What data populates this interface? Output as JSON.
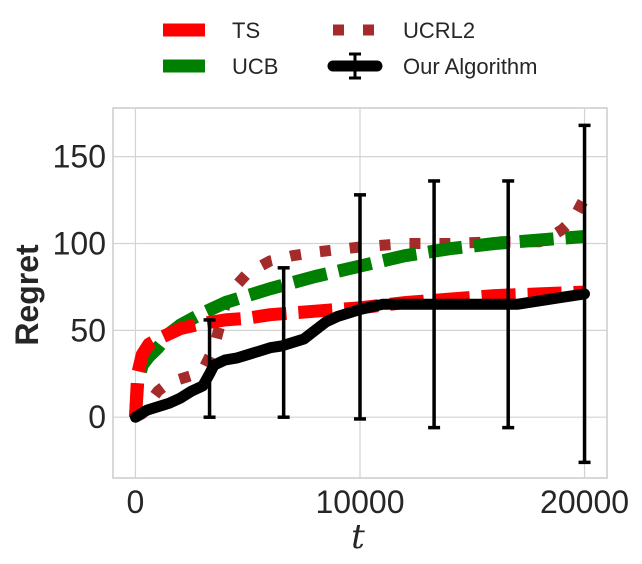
{
  "chart_data": {
    "type": "line",
    "xlabel": "t",
    "ylabel": "Regret",
    "xlim": [
      -1000,
      21000
    ],
    "ylim": [
      -35,
      178
    ],
    "x_ticks": [
      0,
      10000,
      20000
    ],
    "x_tick_labels": [
      "0",
      "10000",
      "20000"
    ],
    "y_ticks": [
      0,
      50,
      100,
      150
    ],
    "y_tick_labels": [
      "0",
      "50",
      "100",
      "150"
    ],
    "grid": true,
    "legend_position": "top-center, outside plot",
    "series": [
      {
        "name": "TS",
        "color": "#ff0000",
        "style": "dashed",
        "x": [
          0,
          100,
          300,
          600,
          1000,
          1500,
          2000,
          3000,
          4000,
          5000,
          6000,
          8000,
          10000,
          12000,
          14000,
          16000,
          18000,
          20000
        ],
        "y": [
          0,
          25,
          36,
          42,
          45,
          48,
          51,
          54,
          56,
          57,
          59,
          61,
          63,
          66,
          68,
          70,
          71,
          72
        ]
      },
      {
        "name": "UCB",
        "color": "#008000",
        "style": "dashed",
        "x": [
          0,
          100,
          300,
          600,
          1000,
          1500,
          2000,
          3000,
          4000,
          5000,
          6000,
          8000,
          10000,
          12000,
          14000,
          16000,
          18000,
          20000
        ],
        "y": [
          0,
          20,
          30,
          35,
          40,
          48,
          53,
          60,
          66,
          70,
          74,
          81,
          87,
          93,
          97,
          100,
          102,
          104
        ]
      },
      {
        "name": "UCRL2",
        "color": "#a52a2a",
        "style": "dotted",
        "x": [
          0,
          300,
          600,
          1000,
          1500,
          2000,
          2500,
          3000,
          3500,
          4000,
          4500,
          5000,
          6000,
          7000,
          8000,
          10000,
          12000,
          14000,
          16000,
          17000,
          18000,
          18500,
          19000,
          19500,
          20000
        ],
        "y": [
          0,
          2,
          8,
          15,
          20,
          22,
          24,
          27,
          40,
          65,
          76,
          83,
          90,
          93,
          95,
          98,
          100,
          100,
          101,
          101,
          101,
          104,
          108,
          114,
          126
        ]
      },
      {
        "name": "Our Algorithm",
        "color": "#000000",
        "style": "solid",
        "error_bars": true,
        "x": [
          0,
          500,
          1000,
          1500,
          2000,
          2500,
          3000,
          3300,
          3500,
          4000,
          4500,
          5000,
          5500,
          6000,
          6500,
          7000,
          7500,
          8000,
          8500,
          9000,
          9500,
          10000,
          11000,
          12000,
          13000,
          14000,
          15000,
          16000,
          17000,
          18000,
          19000,
          20000
        ],
        "y": [
          0,
          4,
          6,
          8,
          11,
          15,
          18,
          25,
          30,
          33,
          34,
          36,
          38,
          40,
          41,
          43,
          45,
          50,
          55,
          58,
          60,
          62,
          65,
          65,
          65,
          65,
          65,
          65,
          65,
          67,
          69,
          71
        ],
        "errorbars": [
          {
            "x": 3300,
            "low": 0,
            "high": 56
          },
          {
            "x": 6600,
            "low": 0,
            "high": 86
          },
          {
            "x": 10000,
            "low": -1,
            "high": 128
          },
          {
            "x": 13300,
            "low": -6,
            "high": 136
          },
          {
            "x": 16600,
            "low": -6,
            "high": 136
          },
          {
            "x": 20000,
            "low": -26,
            "high": 168
          }
        ]
      }
    ]
  },
  "colors": {
    "grid": "#d3d3d3",
    "frame": "#cccccc",
    "text": "#262626"
  }
}
